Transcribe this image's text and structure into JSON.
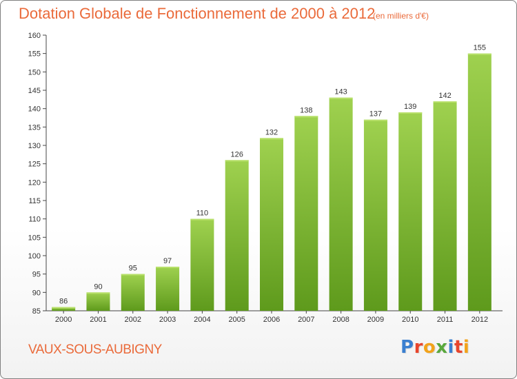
{
  "header": {
    "title": "Dotation Globale de Fonctionnement de 2000 à 2012",
    "subtitle": "(en milliers d'€)"
  },
  "footer": {
    "place": "VAUX-SOUS-AUBIGNY",
    "logo": "Proxiti",
    "logo_colors": [
      "#3a7fd0",
      "#e8452c",
      "#f2a31b",
      "#58a83c",
      "#3a7fd0",
      "#e8452c",
      "#f2a31b"
    ]
  },
  "colors": {
    "text_accent": "#ea6a3a",
    "bar_top": "#9fd14f",
    "bar_bottom": "#5e9a1c"
  },
  "chart_data": {
    "type": "bar",
    "categories": [
      "2000",
      "2001",
      "2002",
      "2003",
      "2004",
      "2005",
      "2006",
      "2007",
      "2008",
      "2009",
      "2010",
      "2011",
      "2012"
    ],
    "values": [
      86,
      90,
      95,
      97,
      110,
      126,
      132,
      138,
      143,
      137,
      139,
      142,
      155
    ],
    "ylim": [
      85,
      160
    ],
    "yticks": [
      85,
      90,
      95,
      100,
      105,
      110,
      115,
      120,
      125,
      130,
      135,
      140,
      145,
      150,
      155,
      160
    ],
    "grid": false,
    "data_labels": true
  }
}
